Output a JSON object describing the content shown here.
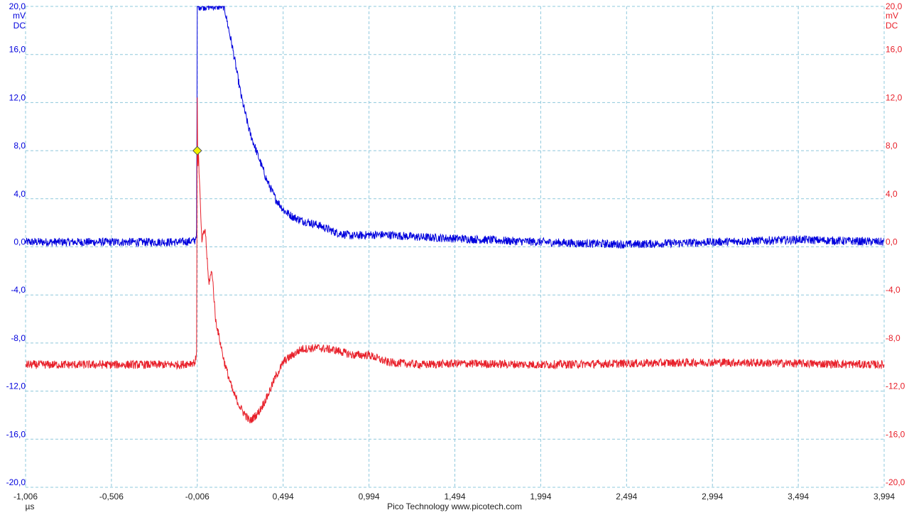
{
  "chart_data": {
    "type": "line",
    "x_unit": "µs",
    "x_ticks": [
      "-1,006",
      "-0,506",
      "-0,006",
      "0,494",
      "0,994",
      "1,494",
      "1,994",
      "2,494",
      "2,994",
      "3,494",
      "3,994"
    ],
    "xlim": [
      -1.006,
      3.994
    ],
    "y_ticks": [
      "20,0",
      "16,0",
      "12,0",
      "8,0",
      "4,0",
      "0,0",
      "-4,0",
      "-8,0",
      "-12,0",
      "-16,0",
      "-20,0"
    ],
    "ylim": [
      -20,
      20
    ],
    "left_axis": {
      "unit": "mV",
      "coupling": "DC",
      "color": "#0000dd"
    },
    "right_axis": {
      "unit": "mV",
      "coupling": "DC",
      "color": "#e8202a"
    },
    "grid": true,
    "trigger": {
      "x": -0.006,
      "y": 8.0,
      "color": "#f2f200"
    },
    "series": [
      {
        "color": "#0000dd",
        "x": [
          -1.006,
          -0.1,
          -0.02,
          -0.01,
          -0.006,
          -0.005,
          0.0,
          0.05,
          0.15,
          0.2,
          0.25,
          0.3,
          0.35,
          0.4,
          0.45,
          0.5,
          0.55,
          0.6,
          0.65,
          0.7,
          0.75,
          0.8,
          0.9,
          0.994,
          1.1,
          1.3,
          1.5,
          1.8,
          2.2,
          2.5,
          3.0,
          3.5,
          3.994
        ],
        "y": [
          0.4,
          0.4,
          0.5,
          1.2,
          20.0,
          20.0,
          20.0,
          20.0,
          20.0,
          16.5,
          12.5,
          9.5,
          7.5,
          5.5,
          4.0,
          3.0,
          2.5,
          2.2,
          2.0,
          1.8,
          1.5,
          1.2,
          0.9,
          1.0,
          1.0,
          0.8,
          0.7,
          0.5,
          0.3,
          0.2,
          0.4,
          0.6,
          0.4
        ],
        "noise": 0.35
      },
      {
        "color": "#e8202a",
        "x": [
          -1.006,
          -0.1,
          -0.02,
          -0.01,
          -0.006,
          -0.003,
          0.0,
          0.02,
          0.04,
          0.06,
          0.08,
          0.1,
          0.15,
          0.2,
          0.25,
          0.3,
          0.35,
          0.4,
          0.45,
          0.5,
          0.6,
          0.7,
          0.8,
          0.9,
          0.994,
          1.1,
          1.3,
          1.5,
          2.0,
          2.5,
          3.0,
          3.5,
          3.994
        ],
        "y": [
          -9.8,
          -9.8,
          -9.6,
          -9.0,
          12.5,
          6.0,
          8.0,
          0.5,
          1.5,
          -3.0,
          -2.0,
          -6.0,
          -9.5,
          -12.0,
          -13.5,
          -14.5,
          -13.8,
          -12.5,
          -10.8,
          -9.5,
          -8.5,
          -8.4,
          -8.6,
          -9.0,
          -9.0,
          -9.6,
          -9.8,
          -9.7,
          -9.8,
          -9.7,
          -9.6,
          -9.7,
          -9.8
        ],
        "noise": 0.35
      }
    ]
  },
  "footer": {
    "brand": "Pico Technology   www.picotech.com"
  }
}
